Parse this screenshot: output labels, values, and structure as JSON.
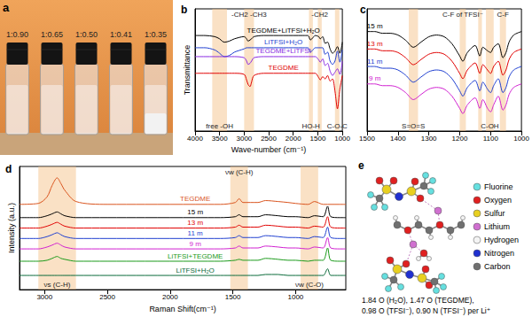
{
  "panel_a": {
    "title": "a",
    "vials": [
      "1:0.90",
      "1:0.65",
      "1:0.50",
      "1:0.41",
      "1:0.35"
    ]
  },
  "chart_data": [
    {
      "type": "line",
      "title": "b",
      "x_label": "Wave-number (cm⁻¹)",
      "y_label": "Transmittance",
      "x": [
        4000,
        3800,
        3600,
        3500,
        3450,
        3400,
        3300,
        3200,
        3000,
        2950,
        2920,
        2880,
        2850,
        2800,
        2600,
        2400,
        2200,
        2000,
        1800,
        1700,
        1650,
        1620,
        1550,
        1480,
        1450,
        1400,
        1350,
        1300,
        1250,
        1200,
        1150,
        1100,
        1050,
        1000
      ],
      "xlim": [
        4000,
        1000
      ],
      "xticks": [
        4000,
        3500,
        3000,
        2500,
        2000,
        1500,
        1000
      ],
      "ylim": [
        0,
        11
      ],
      "tick_labels": "x",
      "series": [
        {
          "name": "TEGDME+LiTFSI+H₂O",
          "color": "#000000",
          "values": [
            8.6,
            8.6,
            8.5,
            8.3,
            8.1,
            8.0,
            8.1,
            8.3,
            8.5,
            8.3,
            8.1,
            8.2,
            8.3,
            8.5,
            8.6,
            8.6,
            8.6,
            8.6,
            8.6,
            8.6,
            8.2,
            8.3,
            8.6,
            8.5,
            8.3,
            8.5,
            7.9,
            8.0,
            7.4,
            7.0,
            7.2,
            7.6,
            7.0,
            8.0
          ]
        },
        {
          "name": "LiTFSI+H₂O",
          "color": "#1f3fd0",
          "values": [
            7.5,
            7.5,
            7.3,
            7.0,
            6.8,
            6.7,
            6.8,
            7.1,
            7.4,
            7.5,
            7.5,
            7.5,
            7.5,
            7.5,
            7.5,
            7.5,
            7.5,
            7.5,
            7.5,
            7.5,
            7.1,
            7.2,
            7.5,
            7.5,
            7.5,
            7.5,
            6.9,
            7.1,
            6.3,
            6.0,
            6.3,
            7.2,
            6.2,
            7.3
          ]
        },
        {
          "name": "TEGDME+LiTFSI",
          "color": "#8a2be2",
          "values": [
            6.7,
            6.7,
            6.7,
            6.7,
            6.7,
            6.7,
            6.7,
            6.7,
            6.6,
            6.3,
            6.0,
            6.1,
            6.3,
            6.6,
            6.7,
            6.7,
            6.7,
            6.7,
            6.7,
            6.7,
            6.7,
            6.7,
            6.7,
            6.4,
            6.2,
            6.5,
            5.9,
            6.1,
            5.4,
            5.0,
            5.3,
            5.6,
            5.1,
            6.3
          ]
        },
        {
          "name": "TEGDME",
          "color": "#e00000",
          "values": [
            5.2,
            5.2,
            5.2,
            5.2,
            5.2,
            5.2,
            5.2,
            5.2,
            5.1,
            4.6,
            4.2,
            4.0,
            4.4,
            5.0,
            5.2,
            5.2,
            5.2,
            5.2,
            5.2,
            5.2,
            5.2,
            5.2,
            5.2,
            4.8,
            4.6,
            4.9,
            4.7,
            5.0,
            4.5,
            4.7,
            3.6,
            2.0,
            3.8,
            5.0
          ]
        }
      ],
      "bands": [
        {
          "x": [
            3650,
            3350
          ],
          "label": "free -OH"
        },
        {
          "x": [
            3000,
            2800
          ],
          "label": "-CH2 -CH3"
        },
        {
          "x": [
            1680,
            1600
          ],
          "label": "HO-H"
        },
        {
          "x": [
            1500,
            1420
          ],
          "label": "-CH2"
        },
        {
          "x": [
            1150,
            1060
          ],
          "label": "C-O-C"
        }
      ]
    },
    {
      "type": "line",
      "title": "c",
      "x": [
        1500,
        1475,
        1450,
        1425,
        1400,
        1375,
        1350,
        1325,
        1300,
        1275,
        1250,
        1225,
        1200,
        1190,
        1175,
        1150,
        1135,
        1125,
        1110,
        1100,
        1090,
        1075,
        1060,
        1050,
        1040,
        1025,
        1000
      ],
      "xlim": [
        1500,
        1000
      ],
      "xticks": [
        1500,
        1400,
        1300,
        1200,
        1100,
        1000
      ],
      "ylim": [
        3,
        10
      ],
      "tick_labels": "x",
      "series": [
        {
          "name": "15 m",
          "color": "#000000",
          "values": [
            8.7,
            8.7,
            8.6,
            8.6,
            8.5,
            8.2,
            7.8,
            8.1,
            8.4,
            8.5,
            8.4,
            8.0,
            7.3,
            7.0,
            7.5,
            7.9,
            7.3,
            7.8,
            7.6,
            7.5,
            7.8,
            8.0,
            7.2,
            7.5,
            8.1,
            8.5,
            8.7
          ]
        },
        {
          "name": "13 m",
          "color": "#e00000",
          "values": [
            7.7,
            7.7,
            7.6,
            7.6,
            7.5,
            7.2,
            6.8,
            7.1,
            7.4,
            7.5,
            7.4,
            7.0,
            6.3,
            6.0,
            6.5,
            6.9,
            6.3,
            6.8,
            6.5,
            6.3,
            6.7,
            7.0,
            6.2,
            6.5,
            7.1,
            7.5,
            7.7
          ]
        },
        {
          "name": "11 m",
          "color": "#1f3fd0",
          "values": [
            6.7,
            6.7,
            6.6,
            6.6,
            6.5,
            6.2,
            5.8,
            6.1,
            6.4,
            6.5,
            6.4,
            6.0,
            5.3,
            5.0,
            5.5,
            5.9,
            5.3,
            5.8,
            5.4,
            5.2,
            5.6,
            6.0,
            5.2,
            5.5,
            6.1,
            6.5,
            6.7
          ]
        },
        {
          "name": "9 m",
          "color": "#d020d0",
          "values": [
            5.7,
            5.7,
            5.6,
            5.6,
            5.5,
            5.2,
            4.8,
            5.1,
            5.4,
            5.5,
            5.4,
            5.0,
            4.3,
            4.0,
            4.5,
            4.9,
            4.3,
            4.8,
            4.3,
            4.1,
            4.5,
            5.0,
            4.2,
            4.5,
            5.1,
            5.5,
            5.7
          ]
        }
      ],
      "bands": [
        {
          "x": [
            1365,
            1335
          ],
          "label": "S=O=S"
        },
        {
          "x": [
            1200,
            1180
          ],
          "label": "C-F of TFSI⁻"
        },
        {
          "x": [
            1140,
            1128
          ]
        },
        {
          "x": [
            1115,
            1090
          ],
          "label": "C-OH"
        },
        {
          "x": [
            1070,
            1050
          ],
          "label": "C-F"
        }
      ]
    },
    {
      "type": "line",
      "title": "d",
      "x_label": "Raman Shift(cm⁻¹)",
      "y_label": "Intensity (a.u.)",
      "x": [
        3200,
        3050,
        2980,
        2940,
        2900,
        2870,
        2840,
        2750,
        2500,
        2200,
        1800,
        1600,
        1480,
        1450,
        1420,
        1300,
        1240,
        1140,
        1060,
        1000,
        900,
        850,
        780,
        745,
        720,
        650,
        600
      ],
      "xlim": [
        3200,
        600
      ],
      "xticks": [
        3000,
        2500,
        2000,
        1500,
        1000
      ],
      "ylim": [
        0,
        13
      ],
      "tick_labels": "x",
      "series": [
        {
          "name": "TEGDME",
          "color": "#d9541e",
          "values": [
            9.0,
            9.1,
            9.8,
            11.0,
            11.8,
            11.2,
            10.5,
            9.3,
            9.0,
            9.0,
            9.0,
            9.0,
            9.2,
            9.6,
            9.2,
            9.2,
            9.4,
            9.3,
            9.2,
            9.1,
            9.0,
            9.3,
            9.0,
            9.0,
            9.0,
            9.0,
            9.0
          ]
        },
        {
          "name": "15 m",
          "color": "#000000",
          "values": [
            7.6,
            7.6,
            7.8,
            8.0,
            8.2,
            8.0,
            7.8,
            7.6,
            7.6,
            7.6,
            7.6,
            7.6,
            7.7,
            7.9,
            7.7,
            7.7,
            7.9,
            7.8,
            7.7,
            7.7,
            7.6,
            7.8,
            7.7,
            8.8,
            7.7,
            7.6,
            7.6
          ]
        },
        {
          "name": "13 m",
          "color": "#e00000",
          "values": [
            6.5,
            6.5,
            6.7,
            6.9,
            7.1,
            6.9,
            6.7,
            6.5,
            6.5,
            6.5,
            6.5,
            6.5,
            6.6,
            6.8,
            6.6,
            6.6,
            6.8,
            6.7,
            6.6,
            6.6,
            6.5,
            6.7,
            6.6,
            7.7,
            6.6,
            6.5,
            6.5
          ]
        },
        {
          "name": "11 m",
          "color": "#1f3fd0",
          "values": [
            5.4,
            5.4,
            5.6,
            5.8,
            6.0,
            5.8,
            5.6,
            5.4,
            5.4,
            5.4,
            5.4,
            5.4,
            5.5,
            5.7,
            5.5,
            5.5,
            5.7,
            5.6,
            5.5,
            5.5,
            5.4,
            5.6,
            5.5,
            6.6,
            5.5,
            5.4,
            5.4
          ]
        },
        {
          "name": "9 m",
          "color": "#d020d0",
          "values": [
            4.3,
            4.3,
            4.5,
            4.7,
            4.9,
            4.7,
            4.5,
            4.3,
            4.3,
            4.3,
            4.3,
            4.3,
            4.4,
            4.6,
            4.4,
            4.4,
            4.6,
            4.5,
            4.4,
            4.4,
            4.3,
            4.5,
            4.4,
            5.5,
            4.4,
            4.3,
            4.3
          ]
        },
        {
          "name": "LiTFSI+TEGDME",
          "color": "#1a9a1a",
          "values": [
            3.0,
            3.0,
            3.1,
            3.3,
            3.5,
            3.3,
            3.2,
            3.0,
            3.0,
            3.0,
            3.0,
            3.0,
            3.1,
            3.2,
            3.1,
            3.1,
            3.3,
            3.2,
            3.1,
            3.1,
            3.0,
            3.1,
            3.1,
            4.4,
            3.1,
            3.0,
            3.0
          ]
        },
        {
          "name": "LiTFSI+H₂O",
          "color": "#0a6a3a",
          "values": [
            1.5,
            1.5,
            1.5,
            1.5,
            1.5,
            1.5,
            1.5,
            1.5,
            1.5,
            1.5,
            1.5,
            1.5,
            1.5,
            1.5,
            1.5,
            1.5,
            1.6,
            1.6,
            1.5,
            1.5,
            1.5,
            1.5,
            1.5,
            2.2,
            1.5,
            1.5,
            1.5
          ]
        }
      ],
      "bands": [
        {
          "x": [
            3050,
            2750
          ],
          "label": "νs (C-H)"
        },
        {
          "x": [
            1520,
            1380
          ],
          "label": "νw (C-H)"
        },
        {
          "x": [
            960,
            820
          ],
          "label": "νw (C-O)"
        }
      ]
    }
  ],
  "panel_e": {
    "title": "e",
    "legend": [
      {
        "name": "Fluorine",
        "color": "#66e0e0"
      },
      {
        "name": "Oxygen",
        "color": "#e02020"
      },
      {
        "name": "Sulfur",
        "color": "#e8d020"
      },
      {
        "name": "Lithium",
        "color": "#d070d0"
      },
      {
        "name": "Hydrogen",
        "color": "#f4f4f4"
      },
      {
        "name": "Nitrogen",
        "color": "#2030d0"
      },
      {
        "name": "Carbon",
        "color": "#707070"
      }
    ],
    "caption": [
      "1.84 O (H₂O), 1.47 O (TEGDME),",
      "0.98 O (TFSI⁻), 0.90 N (TFSI⁻) per Li⁺"
    ]
  }
}
